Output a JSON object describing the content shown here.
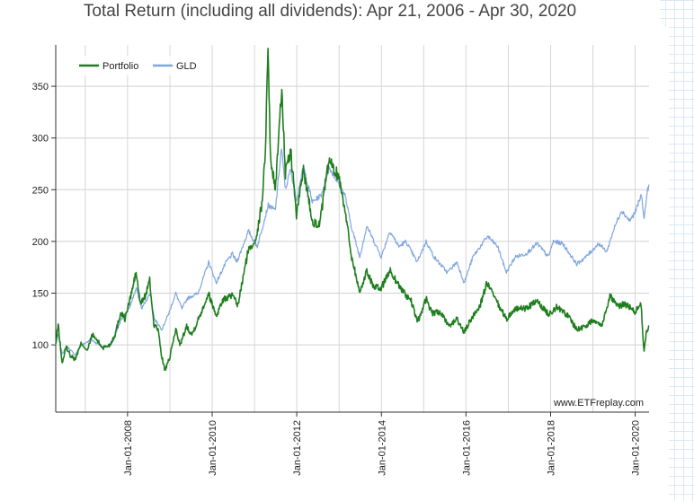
{
  "title": "Total Return (including all dividends): Apr 21, 2006 - Apr 30, 2020",
  "watermark": "www.ETFreplay.com",
  "chart_data": {
    "type": "line",
    "title": "Total Return (including all dividends): Apr 21, 2006 - Apr 30, 2020",
    "x_range": [
      "2006-04-21",
      "2020-04-30"
    ],
    "ylim": [
      35,
      390
    ],
    "y_ticks": [
      100,
      150,
      200,
      250,
      300,
      350
    ],
    "x_ticks": [
      "Jan-01-2008",
      "Jan-01-2010",
      "Jan-01-2012",
      "Jan-01-2014",
      "Jan-01-2016",
      "Jan-01-2018",
      "Jan-01-2020"
    ],
    "grid": true,
    "legend_position": "top-left",
    "series": [
      {
        "name": "Portfolio",
        "color": "#1e7e1e",
        "points": [
          [
            "2006-04-21",
            100
          ],
          [
            "2006-05-12",
            120
          ],
          [
            "2006-06-15",
            82
          ],
          [
            "2006-07-20",
            98
          ],
          [
            "2006-08-25",
            90
          ],
          [
            "2006-10-05",
            86
          ],
          [
            "2006-11-30",
            102
          ],
          [
            "2007-01-20",
            94
          ],
          [
            "2007-03-01",
            110
          ],
          [
            "2007-04-15",
            104
          ],
          [
            "2007-06-01",
            97
          ],
          [
            "2007-08-01",
            100
          ],
          [
            "2007-09-15",
            110
          ],
          [
            "2007-11-05",
            132
          ],
          [
            "2007-12-10",
            125
          ],
          [
            "2008-01-20",
            143
          ],
          [
            "2008-03-15",
            170
          ],
          [
            "2008-04-20",
            140
          ],
          [
            "2008-06-01",
            147
          ],
          [
            "2008-07-10",
            162
          ],
          [
            "2008-08-15",
            120
          ],
          [
            "2008-09-20",
            115
          ],
          [
            "2008-10-20",
            90
          ],
          [
            "2008-11-20",
            75
          ],
          [
            "2008-12-31",
            88
          ],
          [
            "2009-02-20",
            115
          ],
          [
            "2009-04-01",
            100
          ],
          [
            "2009-05-25",
            118
          ],
          [
            "2009-07-10",
            110
          ],
          [
            "2009-09-15",
            128
          ],
          [
            "2009-11-30",
            150
          ],
          [
            "2010-02-05",
            128
          ],
          [
            "2010-04-01",
            143
          ],
          [
            "2010-06-20",
            148
          ],
          [
            "2010-08-10",
            138
          ],
          [
            "2010-09-20",
            162
          ],
          [
            "2010-11-05",
            190
          ],
          [
            "2010-12-31",
            200
          ],
          [
            "2011-02-01",
            213
          ],
          [
            "2011-03-10",
            240
          ],
          [
            "2011-04-05",
            290
          ],
          [
            "2011-04-28",
            388
          ],
          [
            "2011-05-20",
            280
          ],
          [
            "2011-06-30",
            250
          ],
          [
            "2011-08-25",
            350
          ],
          [
            "2011-09-25",
            265
          ],
          [
            "2011-11-10",
            288
          ],
          [
            "2011-12-30",
            225
          ],
          [
            "2012-02-28",
            270
          ],
          [
            "2012-05-15",
            220
          ],
          [
            "2012-07-15",
            215
          ],
          [
            "2012-10-05",
            278
          ],
          [
            "2012-12-31",
            262
          ],
          [
            "2013-02-15",
            235
          ],
          [
            "2013-04-15",
            188
          ],
          [
            "2013-06-28",
            150
          ],
          [
            "2013-08-28",
            172
          ],
          [
            "2013-10-31",
            155
          ],
          [
            "2013-12-31",
            155
          ],
          [
            "2014-03-15",
            172
          ],
          [
            "2014-06-15",
            155
          ],
          [
            "2014-09-15",
            142
          ],
          [
            "2014-11-10",
            122
          ],
          [
            "2015-01-25",
            145
          ],
          [
            "2015-03-15",
            130
          ],
          [
            "2015-05-20",
            132
          ],
          [
            "2015-08-05",
            118
          ],
          [
            "2015-10-15",
            125
          ],
          [
            "2015-12-15",
            112
          ],
          [
            "2016-02-15",
            125
          ],
          [
            "2016-05-01",
            138
          ],
          [
            "2016-07-01",
            160
          ],
          [
            "2016-09-15",
            143
          ],
          [
            "2016-12-15",
            125
          ],
          [
            "2017-03-01",
            135
          ],
          [
            "2017-06-01",
            135
          ],
          [
            "2017-09-01",
            142
          ],
          [
            "2017-12-15",
            130
          ],
          [
            "2018-03-01",
            137
          ],
          [
            "2018-06-01",
            128
          ],
          [
            "2018-08-15",
            115
          ],
          [
            "2018-11-01",
            118
          ],
          [
            "2019-01-15",
            125
          ],
          [
            "2019-03-15",
            118
          ],
          [
            "2019-06-01",
            148
          ],
          [
            "2019-08-01",
            137
          ],
          [
            "2019-10-01",
            140
          ],
          [
            "2019-12-31",
            132
          ],
          [
            "2020-02-20",
            140
          ],
          [
            "2020-03-18",
            92
          ],
          [
            "2020-04-05",
            112
          ],
          [
            "2020-04-30",
            118
          ]
        ]
      },
      {
        "name": "GLD",
        "color": "#7fa6e0",
        "points": [
          [
            "2006-04-21",
            100
          ],
          [
            "2006-05-12",
            110
          ],
          [
            "2006-06-15",
            92
          ],
          [
            "2006-08-01",
            98
          ],
          [
            "2006-10-05",
            90
          ],
          [
            "2006-12-01",
            100
          ],
          [
            "2007-02-20",
            105
          ],
          [
            "2007-06-01",
            98
          ],
          [
            "2007-08-15",
            100
          ],
          [
            "2007-11-10",
            125
          ],
          [
            "2008-01-15",
            135
          ],
          [
            "2008-03-17",
            155
          ],
          [
            "2008-05-01",
            135
          ],
          [
            "2008-07-15",
            150
          ],
          [
            "2008-08-20",
            125
          ],
          [
            "2008-10-24",
            115
          ],
          [
            "2008-12-31",
            133
          ],
          [
            "2009-02-20",
            150
          ],
          [
            "2009-04-15",
            135
          ],
          [
            "2009-06-01",
            145
          ],
          [
            "2009-09-01",
            150
          ],
          [
            "2009-12-02",
            180
          ],
          [
            "2010-02-05",
            160
          ],
          [
            "2010-05-01",
            180
          ],
          [
            "2010-06-25",
            188
          ],
          [
            "2010-08-01",
            180
          ],
          [
            "2010-11-10",
            210
          ],
          [
            "2011-01-25",
            195
          ],
          [
            "2011-04-30",
            235
          ],
          [
            "2011-06-30",
            230
          ],
          [
            "2011-08-22",
            290
          ],
          [
            "2011-09-26",
            250
          ],
          [
            "2011-11-08",
            270
          ],
          [
            "2011-12-29",
            240
          ],
          [
            "2012-02-28",
            272
          ],
          [
            "2012-05-15",
            238
          ],
          [
            "2012-08-01",
            245
          ],
          [
            "2012-10-05",
            272
          ],
          [
            "2012-12-31",
            255
          ],
          [
            "2013-02-20",
            245
          ],
          [
            "2013-04-15",
            215
          ],
          [
            "2013-06-28",
            185
          ],
          [
            "2013-08-28",
            215
          ],
          [
            "2013-12-31",
            185
          ],
          [
            "2014-03-15",
            210
          ],
          [
            "2014-06-01",
            195
          ],
          [
            "2014-08-01",
            200
          ],
          [
            "2014-11-05",
            180
          ],
          [
            "2015-01-22",
            200
          ],
          [
            "2015-04-01",
            185
          ],
          [
            "2015-07-24",
            170
          ],
          [
            "2015-10-15",
            180
          ],
          [
            "2015-12-17",
            160
          ],
          [
            "2016-03-01",
            185
          ],
          [
            "2016-07-06",
            205
          ],
          [
            "2016-10-01",
            195
          ],
          [
            "2016-12-15",
            170
          ],
          [
            "2017-03-01",
            185
          ],
          [
            "2017-06-01",
            188
          ],
          [
            "2017-09-08",
            198
          ],
          [
            "2017-12-12",
            185
          ],
          [
            "2018-01-25",
            200
          ],
          [
            "2018-04-15",
            198
          ],
          [
            "2018-08-15",
            178
          ],
          [
            "2018-11-01",
            185
          ],
          [
            "2019-02-20",
            198
          ],
          [
            "2019-05-01",
            190
          ],
          [
            "2019-06-25",
            210
          ],
          [
            "2019-09-04",
            230
          ],
          [
            "2019-11-15",
            220
          ],
          [
            "2019-12-31",
            228
          ],
          [
            "2020-02-24",
            245
          ],
          [
            "2020-03-19",
            222
          ],
          [
            "2020-04-14",
            248
          ],
          [
            "2020-04-30",
            255
          ]
        ]
      }
    ]
  }
}
